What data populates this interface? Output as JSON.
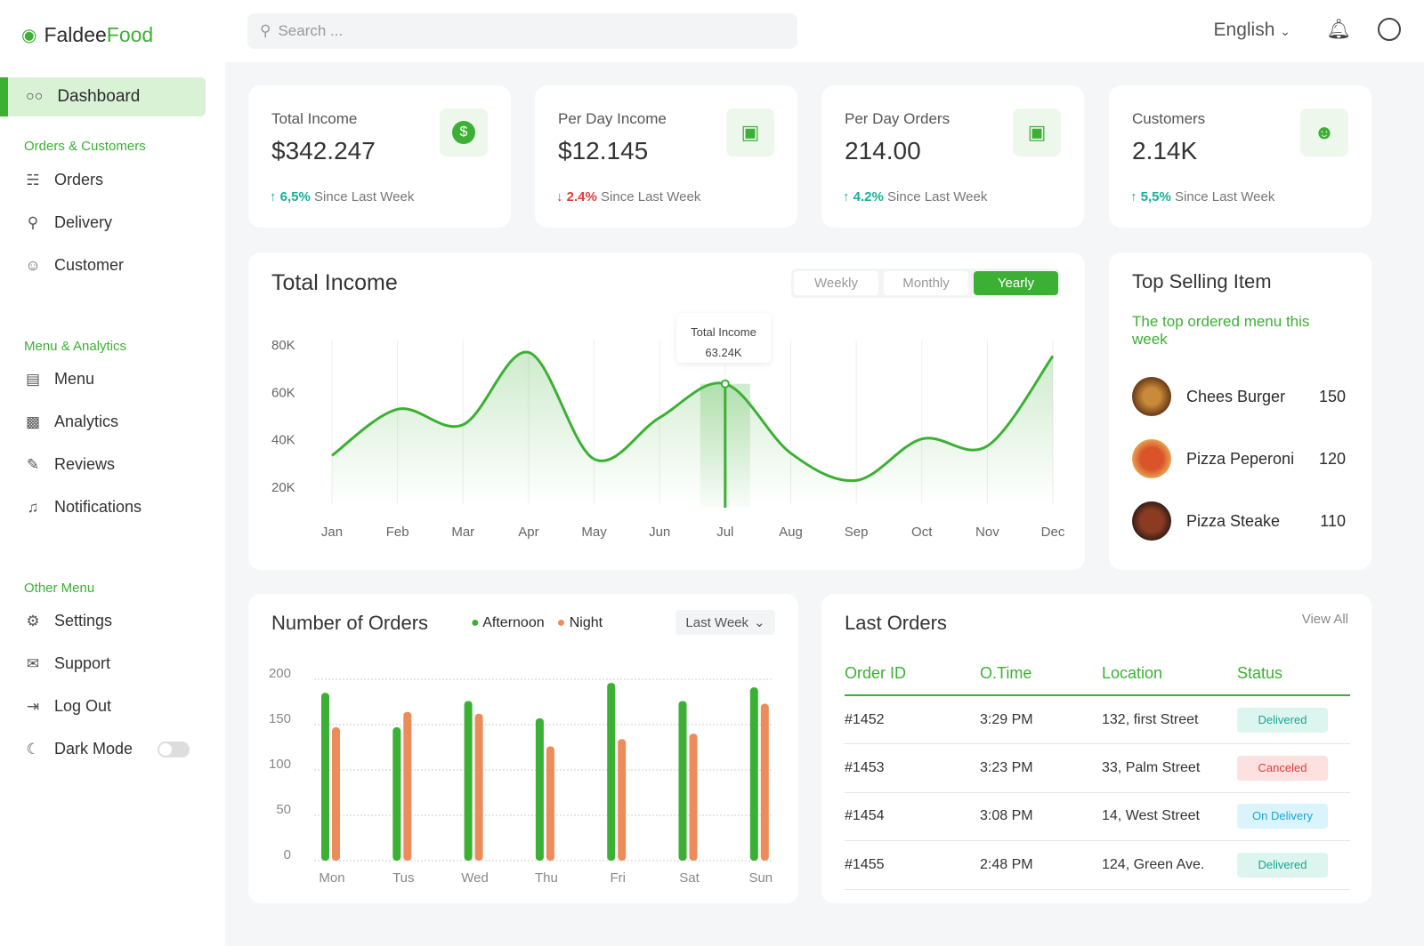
{
  "brand": {
    "part1": "Faldee",
    "part2": "Food"
  },
  "sidebar": {
    "active": "Dashboard",
    "sections": [
      {
        "title": "Orders & Customers",
        "items": [
          "Orders",
          "Delivery",
          "Customer"
        ]
      },
      {
        "title": "Menu & Analytics",
        "items": [
          "Menu",
          "Analytics",
          "Reviews",
          "Notifications"
        ]
      },
      {
        "title": "Other Menu",
        "items": [
          "Settings",
          "Support",
          "Log Out",
          "Dark Mode"
        ]
      }
    ],
    "dark_mode": false
  },
  "topbar": {
    "search_placeholder": "Search ...",
    "language": "English"
  },
  "stats": [
    {
      "label": "Total Income",
      "value": "$342.247",
      "change": "6,5%",
      "dir": "up",
      "suffix": "Since Last Week",
      "icon": "dollar-icon"
    },
    {
      "label": "Per Day Income",
      "value": "$12.145",
      "change": "2.4%",
      "dir": "down",
      "suffix": "Since Last Week",
      "icon": "card-icon"
    },
    {
      "label": "Per Day Orders",
      "value": "214.00",
      "change": "4.2%",
      "dir": "up",
      "suffix": "Since Last Week",
      "icon": "bag-icon"
    },
    {
      "label": "Customers",
      "value": "2.14K",
      "change": "5,5%",
      "dir": "up",
      "suffix": "Since Last Week",
      "icon": "users-icon"
    }
  ],
  "income": {
    "title": "Total Income",
    "tabs": [
      "Weekly",
      "Monthly",
      "Yearly"
    ],
    "active_tab": "Yearly",
    "tooltip": {
      "label": "Total Income",
      "value": "63.24K"
    }
  },
  "chart_data": [
    {
      "type": "area",
      "categories": [
        "Jan",
        "Feb",
        "Mar",
        "Apr",
        "May",
        "Jun",
        "Jul",
        "Aug",
        "Sep",
        "Oct",
        "Nov",
        "Dec"
      ],
      "values": [
        33,
        52.5,
        46,
        76.5,
        31.5,
        49,
        63.24,
        34,
        22.5,
        40,
        37,
        75
      ],
      "yticks": [
        "80K",
        "60K",
        "40K",
        "20K"
      ],
      "ylim": [
        20,
        80
      ],
      "highlight": "Jul",
      "color": "#3cb034"
    },
    {
      "type": "bar",
      "title": "Number of Orders",
      "categories": [
        "Mon",
        "Tus",
        "Wed",
        "Thu",
        "Fri",
        "Sat",
        "Sun"
      ],
      "series": [
        {
          "name": "Afternoon",
          "color": "#3cb034",
          "values": [
            185,
            147,
            176,
            157,
            196,
            176,
            191
          ]
        },
        {
          "name": "Night",
          "color": "#eb8c5a",
          "values": [
            147,
            164,
            162,
            126,
            134,
            140,
            173
          ]
        }
      ],
      "yticks": [
        "200",
        "150",
        "100",
        "50",
        "0"
      ],
      "ylim": [
        0,
        200
      ],
      "grid": true,
      "legend": "top"
    }
  ],
  "orders_chart": {
    "title": "Number of Orders",
    "filter": "Last Week"
  },
  "top_selling": {
    "title": "Top Selling Item",
    "subtitle": "The top ordered menu this week",
    "items": [
      {
        "name": "Chees Burger",
        "qty": "150"
      },
      {
        "name": "Pizza Peperoni",
        "qty": "120"
      },
      {
        "name": "Pizza Steake",
        "qty": "110"
      }
    ]
  },
  "last_orders": {
    "title": "Last Orders",
    "view_all": "View All",
    "headers": [
      "Order ID",
      "O.Time",
      "Location",
      "Status"
    ],
    "rows": [
      {
        "id": "#1452",
        "time": "3:29 PM",
        "loc": "132, first Street",
        "status": "Delivered"
      },
      {
        "id": "#1453",
        "time": "3:23 PM",
        "loc": "33, Palm Street",
        "status": "Canceled"
      },
      {
        "id": "#1454",
        "time": "3:08 PM",
        "loc": "14, West Street",
        "status": "On Delivery"
      },
      {
        "id": "#1455",
        "time": "2:48 PM",
        "loc": "124, Green Ave.",
        "status": "Delivered"
      }
    ]
  }
}
